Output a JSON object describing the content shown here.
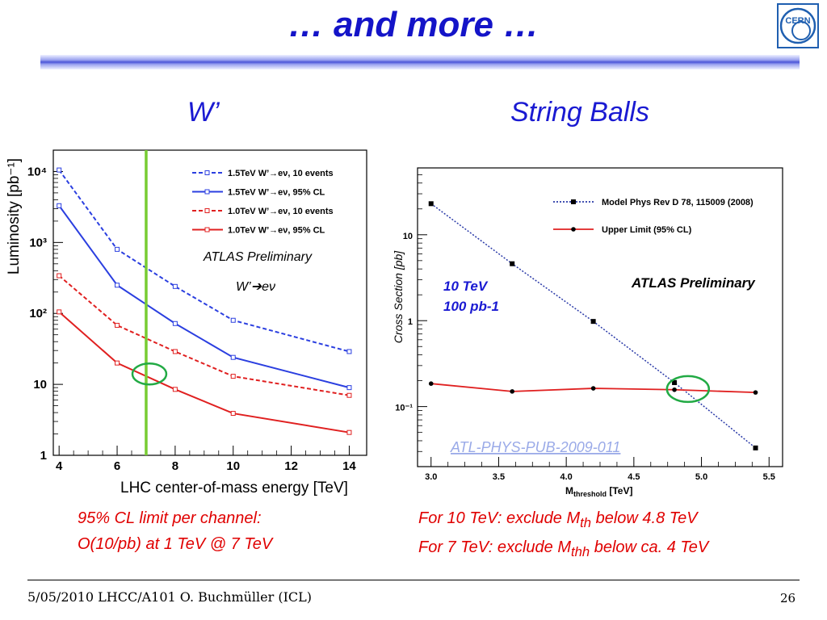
{
  "slide": {
    "title": "… and more …",
    "footer": "5/05/2010 LHCC/A101 O. Buchmüller (ICL)",
    "page_number": "26",
    "logo_text": "CERN"
  },
  "left_panel": {
    "subtitle": "W’",
    "note_lines": [
      "95% CL limit per channel:",
      "O(10/pb) at 1 TeV @  7 TeV"
    ]
  },
  "right_panel": {
    "subtitle": "String Balls",
    "note_lines": [
      "For 10 TeV: exclude M<sub>th</sub> below 4.8 TeV",
      "For 7 TeV: exclude M<sub>thh</sub> below ca. 4 TeV"
    ]
  },
  "chart_data": [
    {
      "type": "line",
      "xlabel": "LHC center-of-mass energy [TeV]",
      "ylabel": "Luminosity [pb⁻¹]",
      "xlim": [
        3.8,
        14.6
      ],
      "ylim": [
        1,
        20000
      ],
      "yscale": "log",
      "xticks": [
        4,
        6,
        8,
        10,
        12,
        14
      ],
      "yticks": [
        {
          "v": 1,
          "label": "1"
        },
        {
          "v": 10,
          "label": "10"
        },
        {
          "v": 100,
          "label": "10²"
        },
        {
          "v": 1000,
          "label": "10³"
        },
        {
          "v": 10000,
          "label": "10⁴"
        }
      ],
      "x": [
        4,
        6,
        8,
        10,
        14
      ],
      "series": [
        {
          "name": "1.5TeV W’→eν, 10 events",
          "values": [
            10500,
            800,
            240,
            80,
            29
          ],
          "color": "#2b3fe0",
          "dashed": true
        },
        {
          "name": "1.5TeV W’→eν, 95% CL",
          "values": [
            3300,
            250,
            72,
            24,
            9
          ],
          "color": "#2b3fe0",
          "dashed": false
        },
        {
          "name": "1.0TeV W’→eν, 10 events",
          "values": [
            340,
            68,
            29,
            13,
            7
          ],
          "color": "#e02020",
          "dashed": true
        },
        {
          "name": "1.0TeV W’→eν, 95% CL",
          "values": [
            105,
            20,
            8.5,
            3.9,
            2.1
          ],
          "color": "#e02020",
          "dashed": false
        }
      ],
      "annotations": [
        "ATLAS Preliminary",
        "W’➔eν"
      ],
      "vertical_marker": {
        "x": 7,
        "color": "#77cc33"
      },
      "highlight": {
        "x": 7,
        "y": 14,
        "color": "#22aa44"
      },
      "grid": false,
      "legend_position": "top-right"
    },
    {
      "type": "line",
      "xlabel": "M_threshold [TeV]",
      "ylabel": "Cross Section [pb]",
      "xlim": [
        2.9,
        5.6
      ],
      "ylim": [
        0.02,
        60
      ],
      "yscale": "log",
      "xticks": [
        3.0,
        3.5,
        4.0,
        4.5,
        5.0,
        5.5
      ],
      "yticks": [
        {
          "v": 0.1,
          "label": "10⁻¹"
        },
        {
          "v": 1,
          "label": "1"
        },
        {
          "v": 10,
          "label": "10"
        }
      ],
      "series": [
        {
          "name": "Model Phys Rev D 78, 115009 (2008)",
          "x": [
            3.0,
            3.6,
            4.2,
            4.8,
            5.4
          ],
          "values": [
            23,
            4.6,
            0.98,
            0.19,
            0.033
          ],
          "color": "#2a3aa8",
          "dashed": true,
          "marker": "square"
        },
        {
          "name": "Upper Limit (95% CL)",
          "x": [
            3.0,
            3.6,
            4.2,
            4.8,
            5.4
          ],
          "values": [
            0.185,
            0.15,
            0.163,
            0.157,
            0.146
          ],
          "color": "#e02020",
          "dashed": false,
          "marker": "circle"
        }
      ],
      "annotations": [
        "10 TeV",
        "100 pb-1",
        "ATLAS Preliminary",
        "ATL-PHYS-PUB-2009-011"
      ],
      "highlight": {
        "x": 4.9,
        "y": 0.16,
        "color": "#22aa44"
      },
      "grid": false,
      "legend_position": "top-right"
    }
  ]
}
